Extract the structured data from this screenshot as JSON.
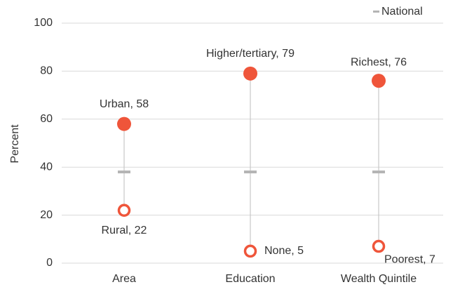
{
  "chart_data": {
    "type": "dumbbell",
    "y_label": "Percent",
    "categories": [
      "Area",
      "Education",
      "Wealth Quintile"
    ],
    "series": [
      {
        "marker": "filled",
        "color": "#ef553a",
        "values": [
          58,
          79,
          76
        ],
        "value_labels": [
          "Urban, 58",
          "Higher/tertiary, 79",
          "Richest, 76"
        ]
      },
      {
        "marker": "ring",
        "color": "#ef553a",
        "values": [
          22,
          5,
          7
        ],
        "value_labels": [
          "Rural, 22",
          "None, 5",
          "Poorest, 7"
        ]
      },
      {
        "name": "National",
        "marker": "dash",
        "color": "#b4b4b4",
        "values": [
          38,
          38,
          38
        ]
      }
    ],
    "ylim": [
      0,
      100
    ],
    "yticks": [
      0,
      20,
      40,
      60,
      80,
      100
    ],
    "grid": true,
    "legend": "top-right"
  }
}
